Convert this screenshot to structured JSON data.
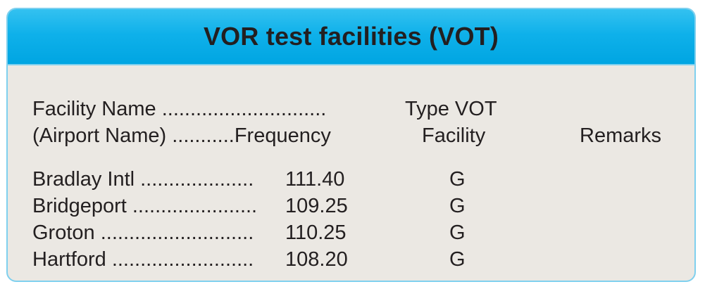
{
  "title": "VOR test facilities (VOT)",
  "header": {
    "line1": "Facility Name .............................",
    "line2": "(Airport Name) ...........Frequency",
    "type_line1": "Type VOT",
    "type_line2": "Facility",
    "remarks": "Remarks"
  },
  "rows": [
    {
      "name": "Bradlay Intl ....................",
      "frequency": "111.40",
      "type": "G"
    },
    {
      "name": "Bridgeport ......................",
      "frequency": "109.25",
      "type": "G"
    },
    {
      "name": "Groton ...........................",
      "frequency": "110.25",
      "type": "G"
    },
    {
      "name": "Hartford .........................",
      "frequency": "108.20",
      "type": "G"
    }
  ],
  "colors": {
    "header_bg": "#00a5e2",
    "border": "#7fd0ee",
    "body_bg": "#ebe8e3",
    "text": "#231f20"
  }
}
